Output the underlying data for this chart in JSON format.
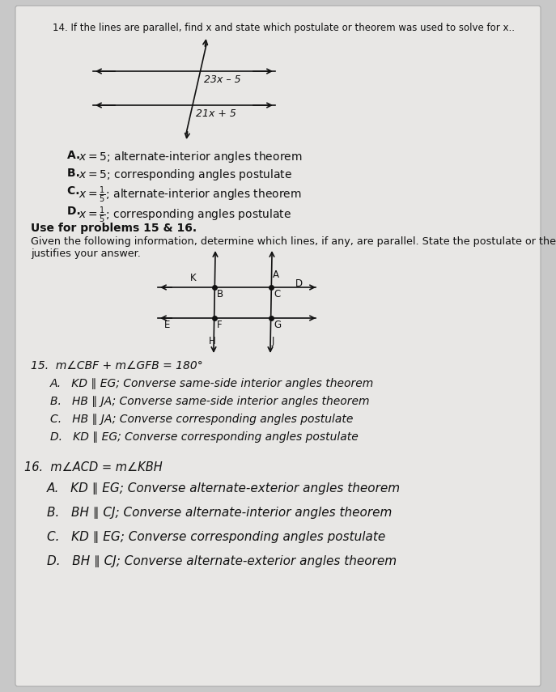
{
  "bg_color": "#c8c8c8",
  "paper_color": "#e8e7e5",
  "q14_text": "14. If the lines are parallel, find x and state which postulate or theorem was used to solve for x..",
  "diagram14_label1": "23x – 5",
  "diagram14_label2": "21x + 5",
  "use_for_text": "Use for problems 15 & 16.",
  "given_text": "Given the following information, determine which lines, if any, are parallel. State the postulate or theorem that",
  "given_text2": "justifies your answer.",
  "q15_text": "15.  m∠CBF + m∠GFB = 180°",
  "q15_options": [
    "A.   KD ∥ EG; Converse same-side interior angles theorem",
    "B.   HB ∥ JA; Converse same-side interior angles theorem",
    "C.   HB ∥ JA; Converse corresponding angles postulate",
    "D.   KD ∥ EG; Converse corresponding angles postulate"
  ],
  "q16_text": "16.  m∠ACD = m∠KBH",
  "q16_options": [
    "A.   KD ∥ EG; Converse alternate-exterior angles theorem",
    "B.   BH ∥ CJ; Converse alternate-interior angles theorem",
    "C.   KD ∥ EG; Converse corresponding angles postulate",
    "D.   BH ∥ CJ; Converse alternate-exterior angles theorem"
  ],
  "text_color": "#111111"
}
